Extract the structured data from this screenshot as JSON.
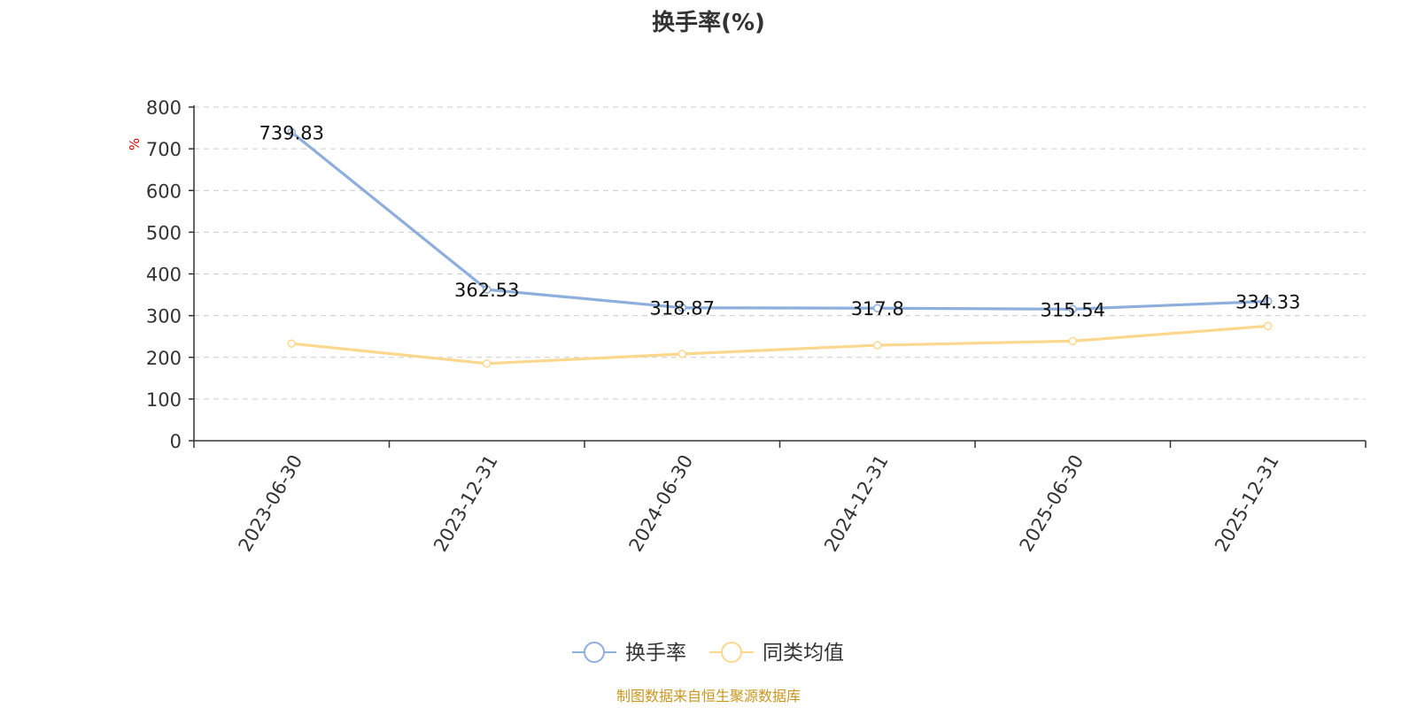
{
  "colors": {
    "series_main": "#8eaedb",
    "series_avg": "#fbd88e",
    "axis": "#333333",
    "grid": "#cccccc",
    "unit": "#e00000",
    "source": "#c8961e"
  },
  "chart_data": {
    "type": "line",
    "title": "换手率(%)",
    "ylabel": "%",
    "ylim": [
      0,
      800
    ],
    "yticks": [
      "0",
      "100",
      "200",
      "300",
      "400",
      "500",
      "600",
      "700",
      "800"
    ],
    "categories": [
      "2023-06-30",
      "2023-12-31",
      "2024-06-30",
      "2024-12-31",
      "2025-06-30",
      "2025-12-31"
    ],
    "grid": true,
    "legend_position": "bottom-center",
    "series": [
      {
        "name": "换手率",
        "values": [
          739.83,
          362.53,
          318.87,
          317.8,
          315.54,
          334.33
        ],
        "labels": [
          "739.83",
          "362.53",
          "318.87",
          "317.8",
          "315.54",
          "334.33"
        ]
      },
      {
        "name": "同类均值",
        "values": [
          233,
          185,
          208,
          229,
          239,
          275
        ]
      }
    ]
  },
  "source": "制图数据来自恒生聚源数据库"
}
